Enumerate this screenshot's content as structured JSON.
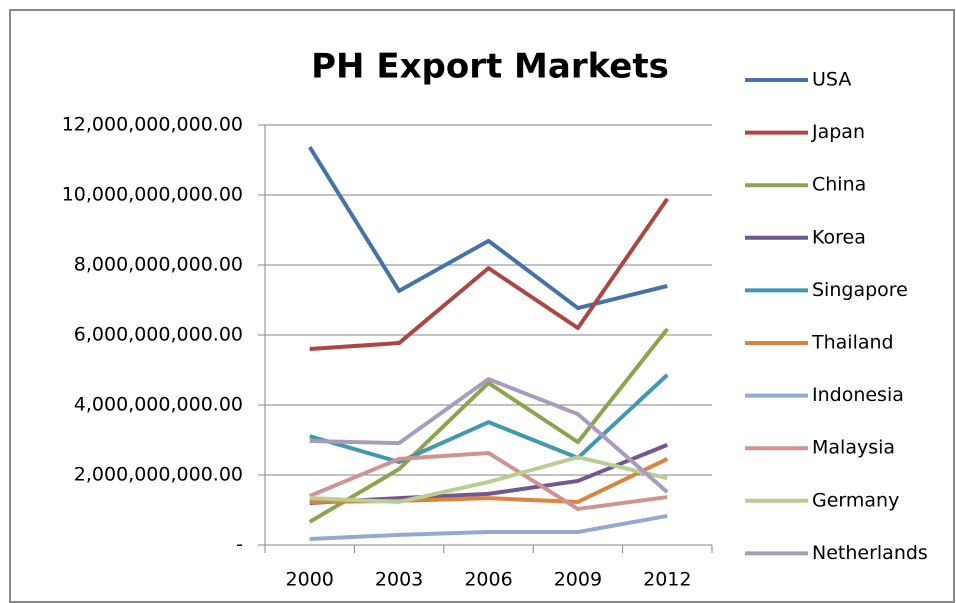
{
  "chart_data": {
    "type": "line",
    "title": "PH Export Markets",
    "categories": [
      "2000",
      "2003",
      "2006",
      "2009",
      "2012"
    ],
    "series": [
      {
        "name": "USA",
        "color": "#4572a7",
        "values": [
          11370000000,
          7260000000,
          8690000000,
          6770000000,
          7400000000
        ]
      },
      {
        "name": "Japan",
        "color": "#aa4643",
        "values": [
          5600000000,
          5770000000,
          7910000000,
          6200000000,
          9890000000
        ]
      },
      {
        "name": "China",
        "color": "#89a54e",
        "values": [
          660000000,
          2170000000,
          4630000000,
          2940000000,
          6170000000
        ]
      },
      {
        "name": "Korea",
        "color": "#71588f",
        "values": [
          1200000000,
          1340000000,
          1460000000,
          1830000000,
          2860000000
        ]
      },
      {
        "name": "Singapore",
        "color": "#4198af",
        "values": [
          3110000000,
          2370000000,
          3510000000,
          2490000000,
          4860000000
        ]
      },
      {
        "name": "Thailand",
        "color": "#db843d",
        "values": [
          1230000000,
          1260000000,
          1340000000,
          1230000000,
          2460000000
        ]
      },
      {
        "name": "Indonesia",
        "color": "#93a9cf",
        "values": [
          170000000,
          290000000,
          370000000,
          370000000,
          830000000
        ]
      },
      {
        "name": "Malaysia",
        "color": "#d19392",
        "values": [
          1400000000,
          2460000000,
          2630000000,
          1030000000,
          1370000000
        ]
      },
      {
        "name": "Germany",
        "color": "#b9cd96",
        "values": [
          1340000000,
          1230000000,
          1800000000,
          2510000000,
          1910000000
        ]
      },
      {
        "name": "Netherlands",
        "color": "#a99bbd",
        "values": [
          2970000000,
          2910000000,
          4740000000,
          3740000000,
          1510000000
        ]
      }
    ],
    "ylim": [
      0,
      12000000000
    ],
    "yticks": [
      {
        "value": 0,
        "label": "-"
      },
      {
        "value": 2000000000,
        "label": "2,000,000,000.00"
      },
      {
        "value": 4000000000,
        "label": "4,000,000,000.00"
      },
      {
        "value": 6000000000,
        "label": "6,000,000,000.00"
      },
      {
        "value": 8000000000,
        "label": "8,000,000,000.00"
      },
      {
        "value": 10000000000,
        "label": "10,000,000,000.00"
      },
      {
        "value": 12000000000,
        "label": "12,000,000,000.00"
      }
    ],
    "grid": true,
    "legend": "right"
  }
}
